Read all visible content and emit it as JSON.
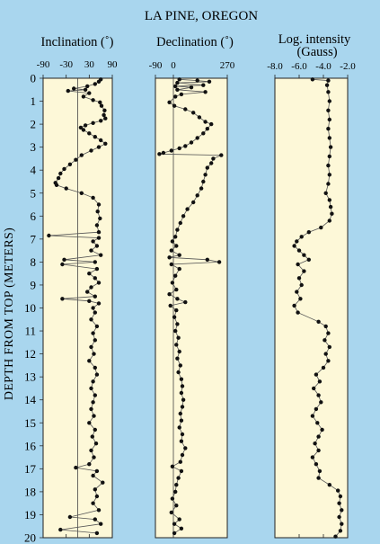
{
  "chart_data": {
    "type": "scatter",
    "title": "LA PINE, OREGON",
    "ylabel": "DEPTH FROM TOP  (METERS)",
    "ylim": [
      0,
      20
    ],
    "yticks": [
      0,
      1,
      2,
      3,
      4,
      5,
      6,
      7,
      8,
      9,
      10,
      11,
      12,
      13,
      14,
      15,
      16,
      17,
      18,
      19,
      20
    ],
    "y_inverted": true,
    "grid": false,
    "colors": {
      "background": "#a9d6ee",
      "panel": "#fdf8d8",
      "marker": "#111111",
      "line": "#555555"
    },
    "panels": [
      {
        "name": "inclination",
        "title": "Inclination (˚)",
        "xlim": [
          -90,
          90
        ],
        "xticks": [
          -90,
          -30,
          30,
          90
        ],
        "xticklabels": [
          "-90",
          "-30",
          "30",
          "90"
        ],
        "ref_line": 0,
        "points": [
          [
            60,
            0.05
          ],
          [
            55,
            0.15
          ],
          [
            45,
            0.25
          ],
          [
            25,
            0.35
          ],
          [
            -10,
            0.45
          ],
          [
            20,
            0.5
          ],
          [
            -25,
            0.55
          ],
          [
            30,
            0.65
          ],
          [
            15,
            0.8
          ],
          [
            40,
            0.95
          ],
          [
            58,
            1.05
          ],
          [
            62,
            1.2
          ],
          [
            70,
            1.4
          ],
          [
            68,
            1.6
          ],
          [
            72,
            1.75
          ],
          [
            60,
            1.85
          ],
          [
            40,
            1.95
          ],
          [
            20,
            2.05
          ],
          [
            8,
            2.15
          ],
          [
            15,
            2.25
          ],
          [
            30,
            2.4
          ],
          [
            45,
            2.55
          ],
          [
            60,
            2.7
          ],
          [
            72,
            2.85
          ],
          [
            55,
            3.0
          ],
          [
            35,
            3.15
          ],
          [
            10,
            3.35
          ],
          [
            -5,
            3.55
          ],
          [
            -20,
            3.75
          ],
          [
            -35,
            3.95
          ],
          [
            -45,
            4.15
          ],
          [
            -50,
            4.35
          ],
          [
            -58,
            4.55
          ],
          [
            -55,
            4.65
          ],
          [
            -30,
            4.8
          ],
          [
            10,
            5.0
          ],
          [
            40,
            5.2
          ],
          [
            55,
            5.5
          ],
          [
            52,
            5.8
          ],
          [
            58,
            6.1
          ],
          [
            50,
            6.4
          ],
          [
            55,
            6.7
          ],
          [
            -75,
            6.85
          ],
          [
            55,
            6.95
          ],
          [
            40,
            7.1
          ],
          [
            50,
            7.3
          ],
          [
            35,
            7.5
          ],
          [
            60,
            7.7
          ],
          [
            -35,
            7.9
          ],
          [
            45,
            8.0
          ],
          [
            -40,
            8.1
          ],
          [
            50,
            8.3
          ],
          [
            30,
            8.5
          ],
          [
            45,
            8.7
          ],
          [
            55,
            8.9
          ],
          [
            35,
            9.1
          ],
          [
            25,
            9.3
          ],
          [
            45,
            9.5
          ],
          [
            -40,
            9.6
          ],
          [
            30,
            9.7
          ],
          [
            55,
            9.8
          ],
          [
            40,
            10.0
          ],
          [
            45,
            10.2
          ],
          [
            35,
            10.5
          ],
          [
            50,
            10.8
          ],
          [
            40,
            11.1
          ],
          [
            45,
            11.4
          ],
          [
            35,
            11.7
          ],
          [
            42,
            12.0
          ],
          [
            30,
            12.3
          ],
          [
            45,
            12.6
          ],
          [
            50,
            12.9
          ],
          [
            40,
            13.2
          ],
          [
            35,
            13.5
          ],
          [
            45,
            13.8
          ],
          [
            40,
            14.1
          ],
          [
            35,
            14.4
          ],
          [
            42,
            14.7
          ],
          [
            30,
            15.0
          ],
          [
            45,
            15.3
          ],
          [
            38,
            15.6
          ],
          [
            48,
            15.9
          ],
          [
            35,
            16.2
          ],
          [
            42,
            16.5
          ],
          [
            30,
            16.8
          ],
          [
            -5,
            16.95
          ],
          [
            50,
            17.1
          ],
          [
            40,
            17.3
          ],
          [
            65,
            17.6
          ],
          [
            45,
            17.9
          ],
          [
            50,
            18.2
          ],
          [
            40,
            18.5
          ],
          [
            55,
            18.8
          ],
          [
            -20,
            19.1
          ],
          [
            45,
            19.2
          ],
          [
            60,
            19.4
          ],
          [
            -45,
            19.65
          ],
          [
            50,
            19.8
          ]
        ]
      },
      {
        "name": "declination",
        "title": "Declination (˚)",
        "xlim": [
          -90,
          270
        ],
        "xticks": [
          -90,
          0,
          270
        ],
        "xticklabels": [
          "-90",
          "0",
          "270"
        ],
        "ref_line": 0,
        "points": [
          [
            30,
            0.05
          ],
          [
            120,
            0.1
          ],
          [
            180,
            0.15
          ],
          [
            20,
            0.2
          ],
          [
            150,
            0.3
          ],
          [
            10,
            0.35
          ],
          [
            90,
            0.4
          ],
          [
            20,
            0.5
          ],
          [
            160,
            0.6
          ],
          [
            40,
            0.7
          ],
          [
            10,
            0.8
          ],
          [
            -20,
            1.05
          ],
          [
            5,
            1.2
          ],
          [
            60,
            1.35
          ],
          [
            100,
            1.5
          ],
          [
            130,
            1.7
          ],
          [
            160,
            1.9
          ],
          [
            190,
            2.0
          ],
          [
            170,
            2.2
          ],
          [
            150,
            2.4
          ],
          [
            120,
            2.6
          ],
          [
            90,
            2.8
          ],
          [
            60,
            2.95
          ],
          [
            30,
            3.05
          ],
          [
            -10,
            3.15
          ],
          [
            -50,
            3.25
          ],
          [
            -70,
            3.3
          ],
          [
            240,
            3.35
          ],
          [
            200,
            3.5
          ],
          [
            190,
            3.7
          ],
          [
            170,
            3.9
          ],
          [
            160,
            4.2
          ],
          [
            150,
            4.5
          ],
          [
            140,
            4.8
          ],
          [
            120,
            5.1
          ],
          [
            100,
            5.4
          ],
          [
            70,
            5.7
          ],
          [
            50,
            6.0
          ],
          [
            35,
            6.3
          ],
          [
            20,
            6.6
          ],
          [
            10,
            6.9
          ],
          [
            -5,
            7.1
          ],
          [
            15,
            7.3
          ],
          [
            -10,
            7.5
          ],
          [
            30,
            7.7
          ],
          [
            -20,
            7.8
          ],
          [
            170,
            7.9
          ],
          [
            230,
            8.0
          ],
          [
            -10,
            8.1
          ],
          [
            30,
            8.3
          ],
          [
            10,
            8.6
          ],
          [
            -5,
            8.9
          ],
          [
            15,
            9.2
          ],
          [
            -20,
            9.4
          ],
          [
            20,
            9.6
          ],
          [
            60,
            9.75
          ],
          [
            -15,
            9.9
          ],
          [
            15,
            10.1
          ],
          [
            5,
            10.4
          ],
          [
            20,
            10.7
          ],
          [
            10,
            11.0
          ],
          [
            25,
            11.3
          ],
          [
            15,
            11.6
          ],
          [
            30,
            11.9
          ],
          [
            20,
            12.2
          ],
          [
            35,
            12.5
          ],
          [
            25,
            12.8
          ],
          [
            40,
            13.1
          ],
          [
            45,
            13.4
          ],
          [
            40,
            13.7
          ],
          [
            50,
            14.0
          ],
          [
            45,
            14.3
          ],
          [
            35,
            14.6
          ],
          [
            40,
            14.9
          ],
          [
            30,
            15.2
          ],
          [
            45,
            15.5
          ],
          [
            40,
            15.8
          ],
          [
            60,
            16.1
          ],
          [
            45,
            16.4
          ],
          [
            35,
            16.7
          ],
          [
            -5,
            16.9
          ],
          [
            40,
            17.1
          ],
          [
            25,
            17.4
          ],
          [
            15,
            17.7
          ],
          [
            10,
            18.0
          ],
          [
            -5,
            18.3
          ],
          [
            15,
            18.6
          ],
          [
            -10,
            18.9
          ],
          [
            30,
            19.2
          ],
          [
            5,
            19.4
          ],
          [
            40,
            19.6
          ],
          [
            5,
            19.8
          ]
        ]
      },
      {
        "name": "intensity",
        "title": "Log. intensity",
        "subtitle": "(Gauss)",
        "xlim": [
          -8.0,
          -2.0
        ],
        "xticks": [
          -8.0,
          -6.0,
          -4.0,
          -2.0
        ],
        "xticklabels": [
          "-8.0",
          "-6.0",
          "-4.0",
          "-2.0"
        ],
        "points": [
          [
            -4.9,
            0.05
          ],
          [
            -3.6,
            0.1
          ],
          [
            -3.7,
            0.3
          ],
          [
            -3.6,
            0.6
          ],
          [
            -3.5,
            1.0
          ],
          [
            -3.6,
            1.4
          ],
          [
            -3.5,
            1.8
          ],
          [
            -3.6,
            2.2
          ],
          [
            -3.5,
            2.6
          ],
          [
            -3.4,
            3.0
          ],
          [
            -3.5,
            3.4
          ],
          [
            -3.6,
            3.8
          ],
          [
            -3.5,
            4.2
          ],
          [
            -3.6,
            4.6
          ],
          [
            -3.8,
            5.0
          ],
          [
            -3.5,
            5.3
          ],
          [
            -3.4,
            5.6
          ],
          [
            -3.3,
            5.9
          ],
          [
            -3.5,
            6.2
          ],
          [
            -4.2,
            6.5
          ],
          [
            -5.2,
            6.7
          ],
          [
            -5.8,
            6.9
          ],
          [
            -6.2,
            7.1
          ],
          [
            -6.4,
            7.3
          ],
          [
            -6.0,
            7.5
          ],
          [
            -5.6,
            7.7
          ],
          [
            -5.2,
            7.9
          ],
          [
            -6.1,
            8.1
          ],
          [
            -5.6,
            8.4
          ],
          [
            -6.0,
            8.7
          ],
          [
            -5.8,
            9.0
          ],
          [
            -6.2,
            9.3
          ],
          [
            -5.9,
            9.6
          ],
          [
            -6.4,
            9.9
          ],
          [
            -6.1,
            10.2
          ],
          [
            -4.4,
            10.6
          ],
          [
            -3.8,
            10.8
          ],
          [
            -3.6,
            11.1
          ],
          [
            -3.9,
            11.4
          ],
          [
            -3.5,
            11.7
          ],
          [
            -3.8,
            12.0
          ],
          [
            -3.6,
            12.3
          ],
          [
            -4.0,
            12.6
          ],
          [
            -4.6,
            12.9
          ],
          [
            -4.3,
            13.2
          ],
          [
            -4.8,
            13.5
          ],
          [
            -4.4,
            13.8
          ],
          [
            -4.2,
            14.1
          ],
          [
            -4.6,
            14.4
          ],
          [
            -4.9,
            14.7
          ],
          [
            -4.5,
            15.0
          ],
          [
            -4.1,
            15.3
          ],
          [
            -4.4,
            15.6
          ],
          [
            -4.7,
            15.9
          ],
          [
            -4.4,
            16.2
          ],
          [
            -4.9,
            16.5
          ],
          [
            -4.6,
            16.8
          ],
          [
            -4.3,
            17.1
          ],
          [
            -4.4,
            17.4
          ],
          [
            -3.5,
            17.7
          ],
          [
            -2.8,
            17.95
          ],
          [
            -2.6,
            18.2
          ],
          [
            -2.7,
            18.5
          ],
          [
            -2.5,
            18.8
          ],
          [
            -2.7,
            19.1
          ],
          [
            -2.5,
            19.4
          ],
          [
            -2.6,
            19.7
          ],
          [
            -3.0,
            19.95
          ]
        ]
      }
    ]
  }
}
